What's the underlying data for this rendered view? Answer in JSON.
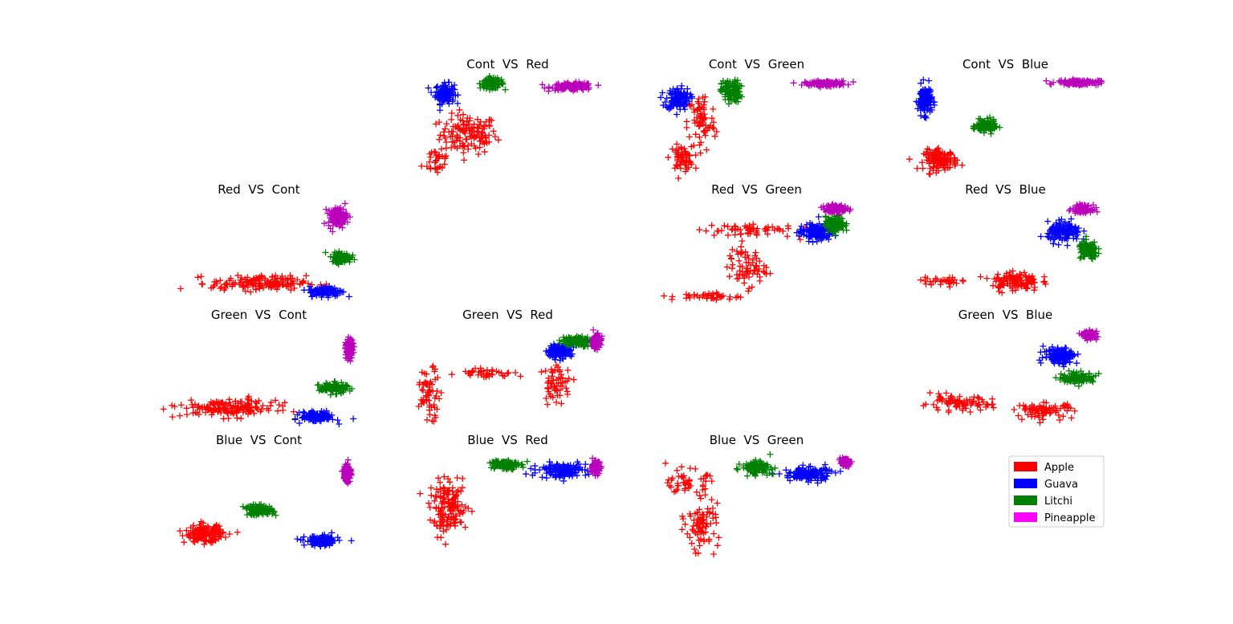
{
  "figure": {
    "legend": {
      "placement": "lower-right",
      "entries": [
        {
          "label": "Apple",
          "color": "#ff0000"
        },
        {
          "label": "Guava",
          "color": "#0000ff"
        },
        {
          "label": "Litchi",
          "color": "#008000"
        },
        {
          "label": "Pineapple",
          "color": "#ff00ff"
        }
      ]
    }
  },
  "chart_data": [
    {
      "type": "scatter",
      "title": "Cont  VS  Red",
      "row": 0,
      "col": 1,
      "marker": "+",
      "series": [
        {
          "name": "Apple",
          "color": "#ff0000",
          "clusters": [
            {
              "cx": 0.3,
              "cy": 0.43,
              "sx": 0.12,
              "sy": 0.16,
              "n": 130
            },
            {
              "cx": 0.14,
              "cy": 0.18,
              "sx": 0.06,
              "sy": 0.12,
              "n": 30
            }
          ]
        },
        {
          "name": "Guava",
          "color": "#0000ff",
          "clusters": [
            {
              "cx": 0.18,
              "cy": 0.83,
              "sx": 0.04,
              "sy": 0.08,
              "n": 120
            }
          ]
        },
        {
          "name": "Litchi",
          "color": "#008000",
          "clusters": [
            {
              "cx": 0.42,
              "cy": 0.93,
              "sx": 0.05,
              "sy": 0.04,
              "n": 120
            }
          ]
        },
        {
          "name": "Pineapple",
          "color": "#bb00bb",
          "clusters": [
            {
              "cx": 0.83,
              "cy": 0.9,
              "sx": 0.09,
              "sy": 0.03,
              "n": 120
            }
          ]
        }
      ]
    },
    {
      "type": "scatter",
      "title": "Cont  VS  Green",
      "row": 0,
      "col": 2,
      "marker": "+",
      "series": [
        {
          "name": "Apple",
          "color": "#ff0000",
          "clusters": [
            {
              "cx": 0.12,
              "cy": 0.2,
              "sx": 0.05,
              "sy": 0.1,
              "n": 60
            },
            {
              "cx": 0.22,
              "cy": 0.55,
              "sx": 0.06,
              "sy": 0.25,
              "n": 70
            }
          ]
        },
        {
          "name": "Guava",
          "color": "#0000ff",
          "clusters": [
            {
              "cx": 0.1,
              "cy": 0.78,
              "sx": 0.05,
              "sy": 0.09,
              "n": 120
            }
          ]
        },
        {
          "name": "Litchi",
          "color": "#008000",
          "clusters": [
            {
              "cx": 0.37,
              "cy": 0.85,
              "sx": 0.04,
              "sy": 0.09,
              "n": 120
            }
          ]
        },
        {
          "name": "Pineapple",
          "color": "#bb00bb",
          "clusters": [
            {
              "cx": 0.85,
              "cy": 0.93,
              "sx": 0.09,
              "sy": 0.02,
              "n": 120
            }
          ]
        }
      ]
    },
    {
      "type": "scatter",
      "title": "Cont  VS  Blue",
      "row": 0,
      "col": 3,
      "marker": "+",
      "series": [
        {
          "name": "Apple",
          "color": "#ff0000",
          "clusters": [
            {
              "cx": 0.17,
              "cy": 0.18,
              "sx": 0.07,
              "sy": 0.08,
              "n": 130
            }
          ]
        },
        {
          "name": "Guava",
          "color": "#0000ff",
          "clusters": [
            {
              "cx": 0.09,
              "cy": 0.77,
              "sx": 0.03,
              "sy": 0.12,
              "n": 120
            }
          ]
        },
        {
          "name": "Litchi",
          "color": "#008000",
          "clusters": [
            {
              "cx": 0.4,
              "cy": 0.51,
              "sx": 0.04,
              "sy": 0.05,
              "n": 120
            }
          ]
        },
        {
          "name": "Pineapple",
          "color": "#bb00bb",
          "clusters": [
            {
              "cx": 0.87,
              "cy": 0.94,
              "sx": 0.09,
              "sy": 0.02,
              "n": 120
            }
          ]
        }
      ]
    },
    {
      "type": "scatter",
      "title": "Red  VS  Cont",
      "row": 1,
      "col": 0,
      "marker": "+",
      "series": [
        {
          "name": "Apple",
          "color": "#ff0000",
          "clusters": [
            {
              "cx": 0.5,
              "cy": 0.2,
              "sx": 0.2,
              "sy": 0.06,
              "n": 160
            }
          ]
        },
        {
          "name": "Guava",
          "color": "#0000ff",
          "clusters": [
            {
              "cx": 0.84,
              "cy": 0.12,
              "sx": 0.07,
              "sy": 0.04,
              "n": 130
            }
          ]
        },
        {
          "name": "Litchi",
          "color": "#008000",
          "clusters": [
            {
              "cx": 0.92,
              "cy": 0.45,
              "sx": 0.04,
              "sy": 0.04,
              "n": 120
            }
          ]
        },
        {
          "name": "Pineapple",
          "color": "#bb00bb",
          "clusters": [
            {
              "cx": 0.9,
              "cy": 0.85,
              "sx": 0.04,
              "sy": 0.08,
              "n": 120
            }
          ]
        }
      ]
    },
    {
      "type": "scatter",
      "title": "Red  VS  Green",
      "row": 1,
      "col": 2,
      "marker": "+",
      "series": [
        {
          "name": "Apple",
          "color": "#ff0000",
          "clusters": [
            {
              "cx": 0.25,
              "cy": 0.07,
              "sx": 0.15,
              "sy": 0.03,
              "n": 40
            },
            {
              "cx": 0.45,
              "cy": 0.35,
              "sx": 0.08,
              "sy": 0.15,
              "n": 70
            },
            {
              "cx": 0.45,
              "cy": 0.72,
              "sx": 0.2,
              "sy": 0.06,
              "n": 60
            }
          ]
        },
        {
          "name": "Guava",
          "color": "#0000ff",
          "clusters": [
            {
              "cx": 0.8,
              "cy": 0.7,
              "sx": 0.07,
              "sy": 0.07,
              "n": 130
            }
          ]
        },
        {
          "name": "Litchi",
          "color": "#008000",
          "clusters": [
            {
              "cx": 0.9,
              "cy": 0.78,
              "sx": 0.04,
              "sy": 0.06,
              "n": 120
            }
          ]
        },
        {
          "name": "Pineapple",
          "color": "#bb00bb",
          "clusters": [
            {
              "cx": 0.9,
              "cy": 0.93,
              "sx": 0.05,
              "sy": 0.03,
              "n": 110
            }
          ]
        }
      ]
    },
    {
      "type": "scatter",
      "title": "Red  VS  Blue",
      "row": 1,
      "col": 3,
      "marker": "+",
      "series": [
        {
          "name": "Apple",
          "color": "#ff0000",
          "clusters": [
            {
              "cx": 0.55,
              "cy": 0.22,
              "sx": 0.1,
              "sy": 0.08,
              "n": 120
            },
            {
              "cx": 0.18,
              "cy": 0.22,
              "sx": 0.1,
              "sy": 0.03,
              "n": 30
            }
          ]
        },
        {
          "name": "Guava",
          "color": "#0000ff",
          "clusters": [
            {
              "cx": 0.8,
              "cy": 0.7,
              "sx": 0.07,
              "sy": 0.08,
              "n": 130
            }
          ]
        },
        {
          "name": "Litchi",
          "color": "#008000",
          "clusters": [
            {
              "cx": 0.92,
              "cy": 0.52,
              "sx": 0.04,
              "sy": 0.07,
              "n": 120
            }
          ]
        },
        {
          "name": "Pineapple",
          "color": "#bb00bb",
          "clusters": [
            {
              "cx": 0.89,
              "cy": 0.93,
              "sx": 0.04,
              "sy": 0.03,
              "n": 110
            }
          ]
        }
      ]
    },
    {
      "type": "scatter",
      "title": "Green  VS  Cont",
      "row": 2,
      "col": 0,
      "marker": "+",
      "series": [
        {
          "name": "Apple",
          "color": "#ff0000",
          "clusters": [
            {
              "cx": 0.35,
              "cy": 0.2,
              "sx": 0.2,
              "sy": 0.07,
              "n": 160
            }
          ]
        },
        {
          "name": "Guava",
          "color": "#0000ff",
          "clusters": [
            {
              "cx": 0.8,
              "cy": 0.12,
              "sx": 0.07,
              "sy": 0.04,
              "n": 130
            }
          ]
        },
        {
          "name": "Litchi",
          "color": "#008000",
          "clusters": [
            {
              "cx": 0.88,
              "cy": 0.4,
              "sx": 0.06,
              "sy": 0.04,
              "n": 120
            }
          ]
        },
        {
          "name": "Pineapple",
          "color": "#bb00bb",
          "clusters": [
            {
              "cx": 0.96,
              "cy": 0.78,
              "sx": 0.015,
              "sy": 0.08,
              "n": 110
            }
          ]
        }
      ]
    },
    {
      "type": "scatter",
      "title": "Green  VS  Red",
      "row": 2,
      "col": 1,
      "marker": "+",
      "series": [
        {
          "name": "Apple",
          "color": "#ff0000",
          "clusters": [
            {
              "cx": 0.1,
              "cy": 0.35,
              "sx": 0.05,
              "sy": 0.2,
              "n": 60
            },
            {
              "cx": 0.4,
              "cy": 0.55,
              "sx": 0.12,
              "sy": 0.04,
              "n": 40
            },
            {
              "cx": 0.75,
              "cy": 0.45,
              "sx": 0.06,
              "sy": 0.15,
              "n": 60
            }
          ]
        },
        {
          "name": "Guava",
          "color": "#0000ff",
          "clusters": [
            {
              "cx": 0.76,
              "cy": 0.76,
              "sx": 0.05,
              "sy": 0.05,
              "n": 130
            }
          ]
        },
        {
          "name": "Litchi",
          "color": "#008000",
          "clusters": [
            {
              "cx": 0.85,
              "cy": 0.86,
              "sx": 0.06,
              "sy": 0.04,
              "n": 120
            }
          ]
        },
        {
          "name": "Pineapple",
          "color": "#bb00bb",
          "clusters": [
            {
              "cx": 0.95,
              "cy": 0.86,
              "sx": 0.02,
              "sy": 0.06,
              "n": 110
            }
          ]
        }
      ]
    },
    {
      "type": "scatter",
      "title": "Green  VS  Blue",
      "row": 2,
      "col": 3,
      "marker": "+",
      "series": [
        {
          "name": "Apple",
          "color": "#ff0000",
          "clusters": [
            {
              "cx": 0.25,
              "cy": 0.25,
              "sx": 0.15,
              "sy": 0.06,
              "n": 80
            },
            {
              "cx": 0.7,
              "cy": 0.18,
              "sx": 0.12,
              "sy": 0.06,
              "n": 80
            }
          ]
        },
        {
          "name": "Guava",
          "color": "#0000ff",
          "clusters": [
            {
              "cx": 0.78,
              "cy": 0.72,
              "sx": 0.07,
              "sy": 0.07,
              "n": 130
            }
          ]
        },
        {
          "name": "Litchi",
          "color": "#008000",
          "clusters": [
            {
              "cx": 0.87,
              "cy": 0.5,
              "sx": 0.07,
              "sy": 0.04,
              "n": 120
            }
          ]
        },
        {
          "name": "Pineapple",
          "color": "#bb00bb",
          "clusters": [
            {
              "cx": 0.93,
              "cy": 0.92,
              "sx": 0.03,
              "sy": 0.03,
              "n": 100
            }
          ]
        }
      ]
    },
    {
      "type": "scatter",
      "title": "Blue  VS  Cont",
      "row": 3,
      "col": 0,
      "marker": "+",
      "series": [
        {
          "name": "Apple",
          "color": "#ff0000",
          "clusters": [
            {
              "cx": 0.22,
              "cy": 0.2,
              "sx": 0.08,
              "sy": 0.07,
              "n": 150
            }
          ]
        },
        {
          "name": "Guava",
          "color": "#0000ff",
          "clusters": [
            {
              "cx": 0.82,
              "cy": 0.13,
              "sx": 0.07,
              "sy": 0.04,
              "n": 130
            }
          ]
        },
        {
          "name": "Litchi",
          "color": "#008000",
          "clusters": [
            {
              "cx": 0.5,
              "cy": 0.43,
              "sx": 0.06,
              "sy": 0.04,
              "n": 120
            }
          ]
        },
        {
          "name": "Pineapple",
          "color": "#bb00bb",
          "clusters": [
            {
              "cx": 0.95,
              "cy": 0.8,
              "sx": 0.015,
              "sy": 0.08,
              "n": 110
            }
          ]
        }
      ]
    },
    {
      "type": "scatter",
      "title": "Blue  VS  Red",
      "row": 3,
      "col": 1,
      "marker": "+",
      "series": [
        {
          "name": "Apple",
          "color": "#ff0000",
          "clusters": [
            {
              "cx": 0.2,
              "cy": 0.45,
              "sx": 0.08,
              "sy": 0.2,
              "n": 150
            }
          ]
        },
        {
          "name": "Guava",
          "color": "#0000ff",
          "clusters": [
            {
              "cx": 0.78,
              "cy": 0.82,
              "sx": 0.1,
              "sy": 0.06,
              "n": 130
            }
          ]
        },
        {
          "name": "Litchi",
          "color": "#008000",
          "clusters": [
            {
              "cx": 0.48,
              "cy": 0.88,
              "sx": 0.06,
              "sy": 0.04,
              "n": 120
            }
          ]
        },
        {
          "name": "Pineapple",
          "color": "#bb00bb",
          "clusters": [
            {
              "cx": 0.95,
              "cy": 0.85,
              "sx": 0.02,
              "sy": 0.05,
              "n": 110
            }
          ]
        }
      ]
    },
    {
      "type": "scatter",
      "title": "Blue  VS  Green",
      "row": 3,
      "col": 2,
      "marker": "+",
      "series": [
        {
          "name": "Apple",
          "color": "#ff0000",
          "clusters": [
            {
              "cx": 0.15,
              "cy": 0.7,
              "sx": 0.08,
              "sy": 0.1,
              "n": 50
            },
            {
              "cx": 0.22,
              "cy": 0.3,
              "sx": 0.07,
              "sy": 0.2,
              "n": 80
            }
          ]
        },
        {
          "name": "Guava",
          "color": "#0000ff",
          "clusters": [
            {
              "cx": 0.76,
              "cy": 0.78,
              "sx": 0.1,
              "sy": 0.06,
              "n": 130
            }
          ]
        },
        {
          "name": "Litchi",
          "color": "#008000",
          "clusters": [
            {
              "cx": 0.5,
              "cy": 0.85,
              "sx": 0.06,
              "sy": 0.05,
              "n": 120
            }
          ]
        },
        {
          "name": "Pineapple",
          "color": "#bb00bb",
          "clusters": [
            {
              "cx": 0.95,
              "cy": 0.9,
              "sx": 0.02,
              "sy": 0.03,
              "n": 100
            }
          ]
        }
      ]
    }
  ]
}
